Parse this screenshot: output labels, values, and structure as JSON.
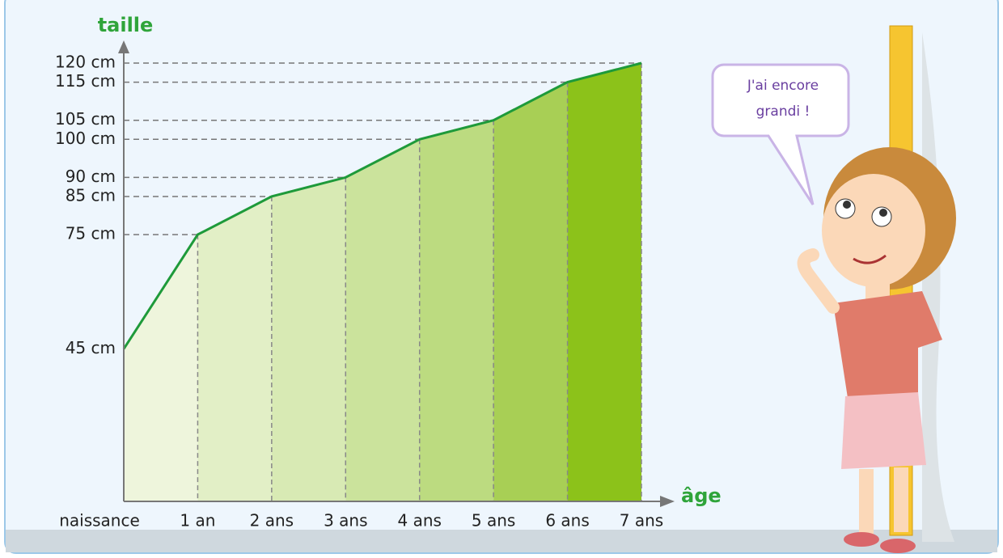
{
  "chart_data": {
    "type": "area",
    "y_label": "taille",
    "x_label": "âge",
    "categories": [
      "naissance",
      "1 an",
      "2 ans",
      "3 ans",
      "4 ans",
      "5 ans",
      "6 ans",
      "7 ans"
    ],
    "values": [
      45,
      75,
      85,
      90,
      100,
      105,
      115,
      120
    ],
    "color": "#1e9a3a",
    "band_colors": [
      "#eef5dc",
      "#e2efc6",
      "#d8eab4",
      "#cbe39c",
      "#bcdb80",
      "#a8cf55",
      "#8cc21a"
    ],
    "ylim": [
      5,
      120
    ],
    "yticks": [
      {
        "value": 45,
        "label": "45 cm"
      },
      {
        "value": 75,
        "label": "75 cm"
      },
      {
        "value": 85,
        "label": "85 cm"
      },
      {
        "value": 90,
        "label": "90 cm"
      },
      {
        "value": 100,
        "label": "100 cm"
      },
      {
        "value": 105,
        "label": "105 cm"
      },
      {
        "value": 115,
        "label": "115 cm"
      },
      {
        "value": 120,
        "label": "120 cm"
      }
    ],
    "grid": true
  },
  "annotation": [
    "J'ai encore",
    "grandi !"
  ]
}
